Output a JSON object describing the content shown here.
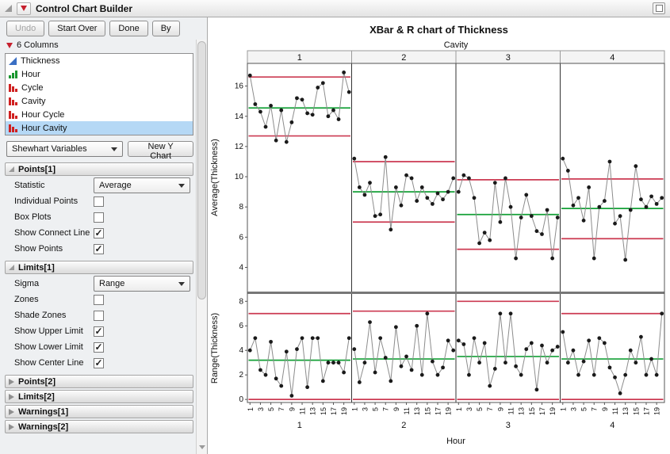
{
  "window": {
    "title": "Control Chart Builder"
  },
  "toolbar": {
    "undo": "Undo",
    "start_over": "Start Over",
    "done": "Done",
    "by": "By"
  },
  "columns": {
    "header": "6 Columns",
    "items": [
      {
        "label": "Thickness",
        "type": "continuous",
        "selected": false
      },
      {
        "label": "Hour",
        "type": "ordinal",
        "selected": false
      },
      {
        "label": "Cycle",
        "type": "nominal",
        "selected": false
      },
      {
        "label": "Cavity",
        "type": "nominal",
        "selected": false
      },
      {
        "label": "Hour Cycle",
        "type": "nominal",
        "selected": false
      },
      {
        "label": "Hour Cavity",
        "type": "nominal",
        "selected": true
      }
    ]
  },
  "chart_type": {
    "selected": "Shewhart Variables",
    "new_chart_button": "New Y Chart"
  },
  "sections": [
    {
      "title": "Points[1]",
      "expanded": true,
      "rows": [
        {
          "kind": "select",
          "label": "Statistic",
          "value": "Average"
        },
        {
          "kind": "checkbox",
          "label": "Individual Points",
          "checked": false
        },
        {
          "kind": "checkbox",
          "label": "Box Plots",
          "checked": false
        },
        {
          "kind": "checkbox",
          "label": "Show Connect Line",
          "checked": true
        },
        {
          "kind": "checkbox",
          "label": "Show Points",
          "checked": true
        }
      ]
    },
    {
      "title": "Limits[1]",
      "expanded": true,
      "rows": [
        {
          "kind": "select",
          "label": "Sigma",
          "value": "Range"
        },
        {
          "kind": "checkbox",
          "label": "Zones",
          "checked": false
        },
        {
          "kind": "checkbox",
          "label": "Shade Zones",
          "checked": false
        },
        {
          "kind": "checkbox",
          "label": "Show Upper Limit",
          "checked": true
        },
        {
          "kind": "checkbox",
          "label": "Show Lower Limit",
          "checked": true
        },
        {
          "kind": "checkbox",
          "label": "Show Center Line",
          "checked": true
        }
      ]
    },
    {
      "title": "Points[2]",
      "expanded": false,
      "rows": []
    },
    {
      "title": "Limits[2]",
      "expanded": false,
      "rows": []
    },
    {
      "title": "Warnings[1]",
      "expanded": false,
      "rows": []
    },
    {
      "title": "Warnings[2]",
      "expanded": false,
      "rows": []
    }
  ],
  "chart_data": {
    "type": "line",
    "title": "XBar & R chart of Thickness",
    "group_label": "Cavity",
    "groups": [
      "1",
      "2",
      "3",
      "4"
    ],
    "xlabel": "Hour",
    "xticks": [
      1,
      3,
      5,
      7,
      9,
      11,
      13,
      15,
      17,
      19
    ],
    "points_per_group": 20,
    "colors": {
      "limit": "#cc3a52",
      "center": "#14a037",
      "point": "#1a1a1a",
      "connect": "#8c8c8c"
    },
    "panels": [
      {
        "ylabel": "Average(Thickness)",
        "ylim": [
          2.4,
          17.5
        ],
        "yticks": [
          4,
          6,
          8,
          10,
          12,
          14,
          16
        ],
        "groups": [
          {
            "ucl": 16.6,
            "center": 14.55,
            "lcl": 12.7,
            "values": [
              16.7,
              14.8,
              14.3,
              13.3,
              14.7,
              12.4,
              14.4,
              12.3,
              13.6,
              15.2,
              15.1,
              14.2,
              14.1,
              15.9,
              16.2,
              14.0,
              14.4,
              13.8,
              16.9,
              15.6
            ]
          },
          {
            "ucl": 11.0,
            "center": 9.0,
            "lcl": 7.0,
            "values": [
              11.2,
              9.3,
              8.8,
              9.6,
              7.4,
              7.5,
              11.3,
              6.5,
              9.3,
              8.1,
              10.1,
              9.9,
              8.4,
              9.3,
              8.6,
              8.2,
              8.9,
              8.5,
              9.0,
              9.9
            ]
          },
          {
            "ucl": 9.8,
            "center": 7.5,
            "lcl": 5.2,
            "values": [
              9.0,
              10.1,
              9.9,
              8.6,
              5.6,
              6.3,
              5.8,
              9.6,
              7.0,
              9.9,
              8.0,
              4.6,
              7.3,
              8.8,
              7.4,
              6.4,
              6.2,
              7.8,
              4.6,
              7.3
            ]
          },
          {
            "ucl": 9.85,
            "center": 7.9,
            "lcl": 5.9,
            "values": [
              11.2,
              10.4,
              8.1,
              8.6,
              7.1,
              9.3,
              4.6,
              8.0,
              8.4,
              11.0,
              6.9,
              7.4,
              4.5,
              7.8,
              10.7,
              8.5,
              8.0,
              8.7,
              8.2,
              8.6
            ]
          }
        ]
      },
      {
        "ylabel": "Range(Thickness)",
        "ylim": [
          -0.25,
          8.6
        ],
        "yticks": [
          0,
          2,
          4,
          6,
          8
        ],
        "groups": [
          {
            "ucl": 7.0,
            "center": 3.2,
            "lcl": 0,
            "values": [
              4.0,
              5.0,
              2.4,
              2.0,
              4.7,
              1.7,
              1.1,
              3.9,
              0.3,
              4.1,
              5.0,
              1.0,
              5.0,
              5.0,
              1.5,
              3.0,
              3.0,
              3.0,
              2.2,
              5.0
            ]
          },
          {
            "ucl": 7.2,
            "center": 3.3,
            "lcl": 0,
            "values": [
              4.1,
              1.4,
              3.0,
              6.3,
              2.2,
              5.0,
              3.4,
              1.5,
              5.9,
              2.7,
              3.5,
              2.4,
              6.0,
              2.0,
              7.0,
              3.1,
              2.0,
              2.6,
              4.8,
              4.0
            ]
          },
          {
            "ucl": 8.0,
            "center": 3.5,
            "lcl": 0,
            "values": [
              4.8,
              4.5,
              2.0,
              5.0,
              3.0,
              4.6,
              1.1,
              2.5,
              7.0,
              3.0,
              7.0,
              2.7,
              2.0,
              4.1,
              4.6,
              0.8,
              4.4,
              3.0,
              4.0,
              4.3
            ]
          },
          {
            "ucl": 7.0,
            "center": 3.3,
            "lcl": 0,
            "values": [
              5.5,
              3.0,
              4.0,
              2.0,
              3.1,
              4.8,
              2.0,
              5.0,
              4.6,
              2.6,
              1.8,
              0.5,
              2.0,
              4.0,
              3.0,
              5.1,
              2.0,
              3.3,
              2.0,
              7.0
            ]
          }
        ]
      }
    ]
  }
}
